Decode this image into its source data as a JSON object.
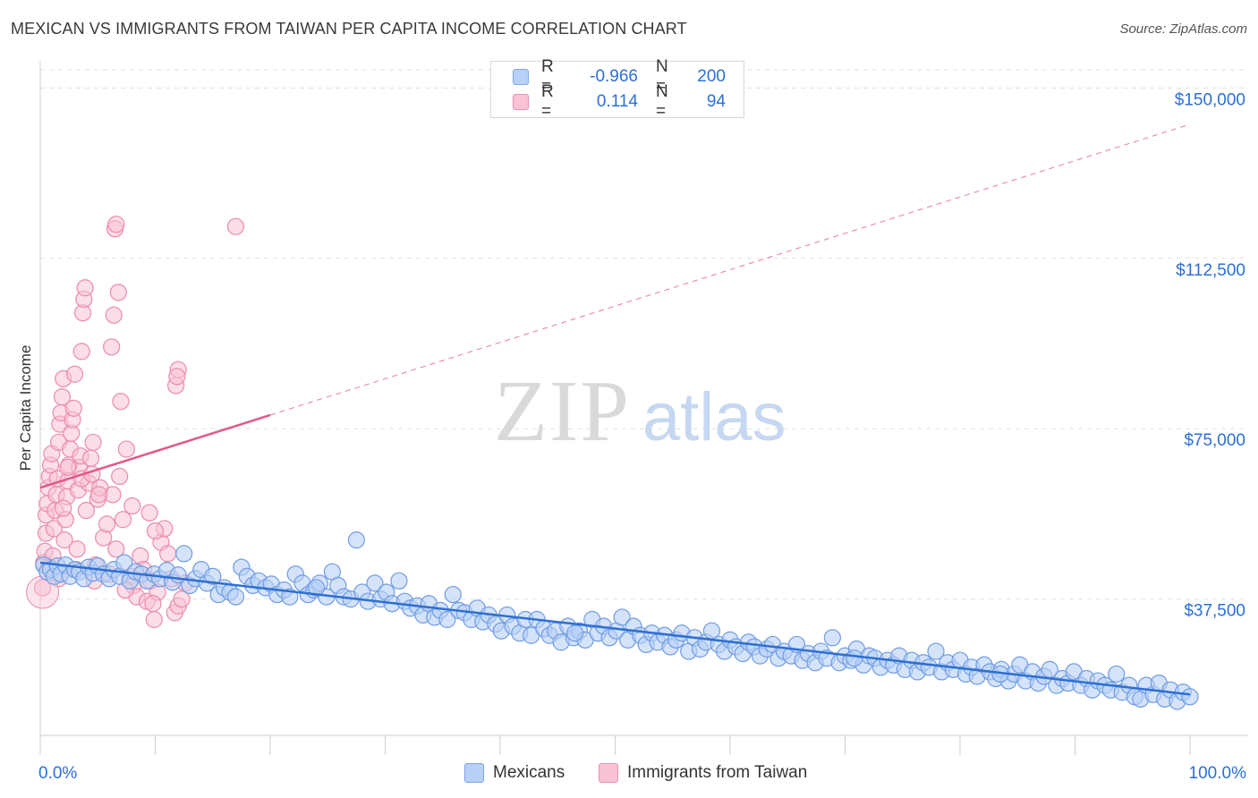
{
  "title": "MEXICAN VS IMMIGRANTS FROM TAIWAN PER CAPITA INCOME CORRELATION CHART",
  "source": "Source: ZipAtlas.com",
  "watermark": {
    "zip": "ZIP",
    "atlas": "atlas"
  },
  "legend": {
    "rows": [
      {
        "r_label": "R =",
        "r_value": "-0.966",
        "n_label": "N =",
        "n_value": "200"
      },
      {
        "r_label": "R =",
        "r_value": "0.114",
        "n_label": "N =",
        "n_value": "94"
      }
    ]
  },
  "bottom_legend": {
    "series1": "Mexicans",
    "series2": "Immigrants from Taiwan"
  },
  "colors": {
    "blue_fill": "#b7d0f5",
    "blue_stroke": "#6f9be3",
    "blue_line": "#2d6fd1",
    "pink_fill": "#f8c3d4",
    "pink_stroke": "#ec8aac",
    "pink_line": "#e2578a",
    "axis_text": "#2b6fd6",
    "grid": "#e1e1e1"
  },
  "chart_data": {
    "type": "scatter",
    "title": "MEXICAN VS IMMIGRANTS FROM TAIWAN PER CAPITA INCOME CORRELATION CHART",
    "xlabel": "",
    "ylabel": "Per Capita Income",
    "x_tick_labels": [
      "0.0%",
      "100.0%"
    ],
    "y_tick_labels": [
      "$37,500",
      "$75,000",
      "$112,500",
      "$150,000"
    ],
    "y_ticks": [
      37500,
      75000,
      112500,
      150000
    ],
    "xlim": [
      0,
      100
    ],
    "ylim": [
      7500,
      154000
    ],
    "grid": true,
    "legend_position": "top-center",
    "series": [
      {
        "name": "Mexicans",
        "r": -0.966,
        "n": 200,
        "trend": {
          "x": [
            0,
            100
          ],
          "y": [
            45500,
            16500
          ]
        },
        "points": [
          [
            0.3,
            45000
          ],
          [
            0.6,
            43500
          ],
          [
            0.9,
            44000
          ],
          [
            1.2,
            42500
          ],
          [
            1.5,
            44800
          ],
          [
            1.8,
            43000
          ],
          [
            2.2,
            45000
          ],
          [
            2.6,
            42500
          ],
          [
            3.0,
            44000
          ],
          [
            3.4,
            43500
          ],
          [
            3.8,
            42000
          ],
          [
            4.2,
            44500
          ],
          [
            4.6,
            43200
          ],
          [
            5.0,
            44800
          ],
          [
            5.5,
            43000
          ],
          [
            6.0,
            42000
          ],
          [
            6.4,
            44000
          ],
          [
            6.9,
            42500
          ],
          [
            7.3,
            45500
          ],
          [
            7.8,
            41500
          ],
          [
            8.3,
            43500
          ],
          [
            8.8,
            43000
          ],
          [
            9.3,
            41500
          ],
          [
            9.9,
            43000
          ],
          [
            10.4,
            42000
          ],
          [
            11.0,
            43800
          ],
          [
            11.5,
            41200
          ],
          [
            12.0,
            42800
          ],
          [
            12.5,
            47500
          ],
          [
            13.0,
            40500
          ],
          [
            13.5,
            42000
          ],
          [
            14.0,
            44000
          ],
          [
            14.5,
            41000
          ],
          [
            15.0,
            42500
          ],
          [
            15.5,
            38500
          ],
          [
            16.0,
            40000
          ],
          [
            16.5,
            39000
          ],
          [
            17.0,
            38000
          ],
          [
            17.5,
            44500
          ],
          [
            18.0,
            42500
          ],
          [
            18.5,
            40500
          ],
          [
            19.0,
            41500
          ],
          [
            19.6,
            40000
          ],
          [
            20.1,
            40800
          ],
          [
            20.6,
            38500
          ],
          [
            21.2,
            39500
          ],
          [
            21.7,
            38000
          ],
          [
            22.2,
            43000
          ],
          [
            22.8,
            41000
          ],
          [
            23.3,
            38500
          ],
          [
            23.8,
            39500
          ],
          [
            24.3,
            41000
          ],
          [
            24.9,
            38000
          ],
          [
            25.4,
            43500
          ],
          [
            25.9,
            40500
          ],
          [
            26.4,
            38000
          ],
          [
            27.0,
            37500
          ],
          [
            27.5,
            50500
          ],
          [
            28.0,
            39000
          ],
          [
            28.5,
            37000
          ],
          [
            29.1,
            41000
          ],
          [
            29.6,
            37500
          ],
          [
            30.1,
            39000
          ],
          [
            30.6,
            36500
          ],
          [
            31.2,
            41500
          ],
          [
            31.7,
            37000
          ],
          [
            32.2,
            35500
          ],
          [
            32.8,
            36000
          ],
          [
            33.3,
            34000
          ],
          [
            33.8,
            36500
          ],
          [
            34.3,
            33500
          ],
          [
            34.8,
            35000
          ],
          [
            35.4,
            33000
          ],
          [
            35.9,
            38500
          ],
          [
            36.4,
            35000
          ],
          [
            36.9,
            34500
          ],
          [
            37.5,
            33000
          ],
          [
            38.0,
            35500
          ],
          [
            38.5,
            32500
          ],
          [
            39.0,
            34000
          ],
          [
            39.6,
            32000
          ],
          [
            40.1,
            30500
          ],
          [
            40.6,
            34000
          ],
          [
            41.1,
            31500
          ],
          [
            41.7,
            30000
          ],
          [
            42.2,
            33000
          ],
          [
            42.7,
            29500
          ],
          [
            43.2,
            33000
          ],
          [
            43.8,
            31000
          ],
          [
            44.3,
            29500
          ],
          [
            44.8,
            30500
          ],
          [
            45.3,
            28000
          ],
          [
            45.9,
            31500
          ],
          [
            46.4,
            29000
          ],
          [
            46.9,
            30500
          ],
          [
            47.4,
            28500
          ],
          [
            48.0,
            33000
          ],
          [
            48.5,
            30000
          ],
          [
            49.0,
            31500
          ],
          [
            49.5,
            29000
          ],
          [
            50.1,
            30500
          ],
          [
            50.6,
            33500
          ],
          [
            51.1,
            28500
          ],
          [
            51.6,
            31500
          ],
          [
            52.2,
            29500
          ],
          [
            52.7,
            27500
          ],
          [
            53.2,
            30000
          ],
          [
            53.7,
            28000
          ],
          [
            54.3,
            29500
          ],
          [
            54.8,
            27000
          ],
          [
            55.3,
            28500
          ],
          [
            55.8,
            30000
          ],
          [
            56.4,
            26000
          ],
          [
            56.9,
            29000
          ],
          [
            57.4,
            26500
          ],
          [
            57.9,
            28000
          ],
          [
            58.4,
            30500
          ],
          [
            59.0,
            27500
          ],
          [
            59.5,
            26000
          ],
          [
            60.0,
            28500
          ],
          [
            60.5,
            27000
          ],
          [
            61.1,
            25500
          ],
          [
            61.6,
            28000
          ],
          [
            62.1,
            27000
          ],
          [
            62.6,
            25000
          ],
          [
            63.2,
            26500
          ],
          [
            63.7,
            27500
          ],
          [
            64.2,
            24500
          ],
          [
            64.7,
            26000
          ],
          [
            65.3,
            25000
          ],
          [
            65.8,
            27500
          ],
          [
            66.3,
            24000
          ],
          [
            66.8,
            25500
          ],
          [
            67.4,
            23500
          ],
          [
            67.9,
            26000
          ],
          [
            68.4,
            24500
          ],
          [
            68.9,
            29000
          ],
          [
            69.5,
            23500
          ],
          [
            70.0,
            25000
          ],
          [
            70.5,
            24000
          ],
          [
            71.0,
            26500
          ],
          [
            71.6,
            23000
          ],
          [
            72.1,
            25000
          ],
          [
            72.6,
            24500
          ],
          [
            73.1,
            22500
          ],
          [
            73.7,
            24000
          ],
          [
            74.2,
            23000
          ],
          [
            74.7,
            25000
          ],
          [
            75.2,
            22000
          ],
          [
            75.8,
            24000
          ],
          [
            76.3,
            21500
          ],
          [
            76.8,
            23500
          ],
          [
            77.3,
            22500
          ],
          [
            77.9,
            26000
          ],
          [
            78.4,
            21500
          ],
          [
            78.9,
            23500
          ],
          [
            79.4,
            22000
          ],
          [
            80.0,
            24000
          ],
          [
            80.5,
            21000
          ],
          [
            81.0,
            22500
          ],
          [
            81.5,
            20500
          ],
          [
            82.1,
            23000
          ],
          [
            82.6,
            21500
          ],
          [
            83.1,
            20000
          ],
          [
            83.6,
            22000
          ],
          [
            84.2,
            19500
          ],
          [
            84.7,
            21000
          ],
          [
            85.2,
            23000
          ],
          [
            85.7,
            19500
          ],
          [
            86.3,
            21500
          ],
          [
            86.8,
            19000
          ],
          [
            87.3,
            20500
          ],
          [
            87.8,
            22000
          ],
          [
            88.4,
            18500
          ],
          [
            88.9,
            20000
          ],
          [
            89.4,
            19000
          ],
          [
            89.9,
            21500
          ],
          [
            90.5,
            18500
          ],
          [
            91.0,
            20000
          ],
          [
            91.5,
            17500
          ],
          [
            92.0,
            19500
          ],
          [
            92.6,
            18500
          ],
          [
            93.1,
            17500
          ],
          [
            93.6,
            21000
          ],
          [
            94.1,
            17000
          ],
          [
            94.7,
            18500
          ],
          [
            95.2,
            16000
          ],
          [
            95.7,
            15500
          ],
          [
            96.2,
            18500
          ],
          [
            96.8,
            16500
          ],
          [
            97.3,
            19000
          ],
          [
            97.8,
            15500
          ],
          [
            98.3,
            17500
          ],
          [
            98.9,
            15000
          ],
          [
            99.4,
            17000
          ],
          [
            100,
            16000
          ],
          [
            24.0,
            40000
          ],
          [
            46.5,
            30000
          ],
          [
            70.8,
            24500
          ],
          [
            83.5,
            21000
          ]
        ]
      },
      {
        "name": "Immigrants from Taiwan",
        "r": 0.114,
        "n": 94,
        "trend": {
          "x": [
            0,
            20
          ],
          "y": [
            62000,
            78000
          ]
        },
        "trend_extension": {
          "x": [
            20,
            100
          ],
          "y": [
            78000,
            142000
          ]
        },
        "points": [
          [
            0.2,
            40000
          ],
          [
            0.3,
            45500
          ],
          [
            0.4,
            48000
          ],
          [
            0.5,
            52000
          ],
          [
            0.5,
            56000
          ],
          [
            0.6,
            58500
          ],
          [
            0.7,
            62000
          ],
          [
            0.8,
            64500
          ],
          [
            0.9,
            67000
          ],
          [
            1.0,
            69500
          ],
          [
            1.1,
            47000
          ],
          [
            1.2,
            53000
          ],
          [
            1.3,
            57000
          ],
          [
            1.4,
            60500
          ],
          [
            1.5,
            64000
          ],
          [
            1.6,
            72000
          ],
          [
            1.7,
            76000
          ],
          [
            1.8,
            78500
          ],
          [
            1.9,
            82000
          ],
          [
            2.0,
            86000
          ],
          [
            2.1,
            50500
          ],
          [
            2.2,
            55000
          ],
          [
            2.3,
            60000
          ],
          [
            2.4,
            63500
          ],
          [
            2.5,
            67000
          ],
          [
            2.6,
            70500
          ],
          [
            2.7,
            74000
          ],
          [
            2.8,
            77000
          ],
          [
            2.9,
            79500
          ],
          [
            3.0,
            87000
          ],
          [
            3.1,
            44000
          ],
          [
            3.2,
            48500
          ],
          [
            3.3,
            61500
          ],
          [
            3.4,
            66500
          ],
          [
            3.5,
            69000
          ],
          [
            3.6,
            92000
          ],
          [
            3.7,
            100500
          ],
          [
            3.8,
            103500
          ],
          [
            3.9,
            106000
          ],
          [
            4.0,
            57000
          ],
          [
            4.2,
            63000
          ],
          [
            4.4,
            68500
          ],
          [
            4.6,
            72000
          ],
          [
            4.8,
            45000
          ],
          [
            5.0,
            59500
          ],
          [
            5.2,
            62000
          ],
          [
            5.5,
            51000
          ],
          [
            5.8,
            54000
          ],
          [
            6.0,
            43000
          ],
          [
            6.3,
            60500
          ],
          [
            6.6,
            48500
          ],
          [
            6.9,
            64500
          ],
          [
            7.2,
            55000
          ],
          [
            7.5,
            70500
          ],
          [
            7.8,
            42500
          ],
          [
            8.1,
            40500
          ],
          [
            8.4,
            38000
          ],
          [
            8.7,
            47000
          ],
          [
            9.0,
            44000
          ],
          [
            9.3,
            37000
          ],
          [
            9.6,
            41500
          ],
          [
            9.9,
            33000
          ],
          [
            10.2,
            39000
          ],
          [
            10.5,
            50000
          ],
          [
            10.8,
            53000
          ],
          [
            11.1,
            47500
          ],
          [
            11.4,
            42000
          ],
          [
            11.7,
            34500
          ],
          [
            12.0,
            36000
          ],
          [
            12.3,
            37500
          ],
          [
            6.5,
            119000
          ],
          [
            6.6,
            120000
          ],
          [
            17.0,
            119500
          ],
          [
            6.2,
            93000
          ],
          [
            6.4,
            100000
          ],
          [
            6.8,
            105000
          ],
          [
            7.0,
            81000
          ],
          [
            11.8,
            84500
          ],
          [
            12.0,
            88000
          ],
          [
            11.9,
            86500
          ],
          [
            2.0,
            57500
          ],
          [
            2.4,
            66500
          ],
          [
            3.6,
            64000
          ],
          [
            4.5,
            65000
          ],
          [
            5.1,
            60500
          ],
          [
            8.0,
            58000
          ],
          [
            9.5,
            56500
          ],
          [
            10.0,
            52500
          ],
          [
            0.8,
            44500
          ],
          [
            1.6,
            42000
          ],
          [
            4.7,
            41500
          ],
          [
            7.4,
            39500
          ],
          [
            9.8,
            36500
          ],
          [
            12.6,
            41000
          ]
        ]
      }
    ]
  }
}
